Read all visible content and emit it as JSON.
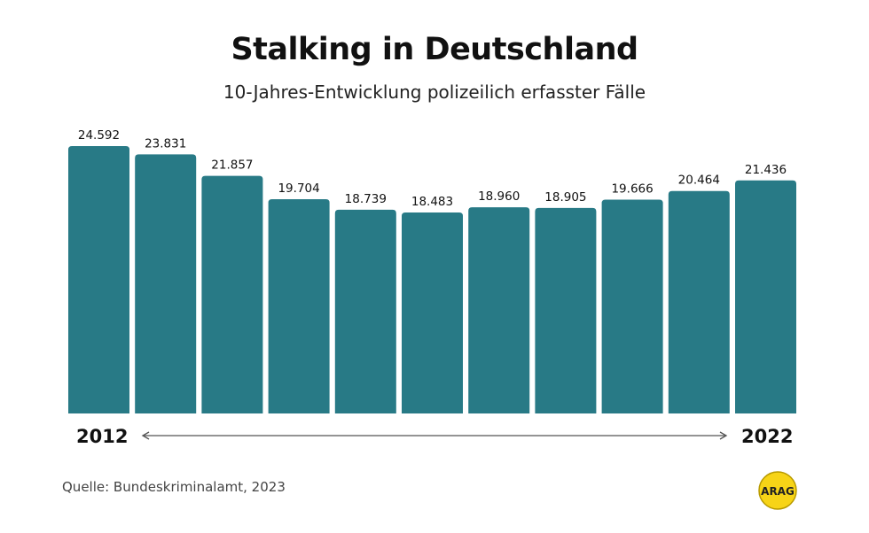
{
  "chart_data": {
    "type": "bar",
    "title": "Stalking in Deutschland",
    "subtitle": "10-Jahres-Entwicklung polizeilich erfasster Fälle",
    "x_labels": [
      "2012",
      "2022"
    ],
    "values": [
      24592,
      23831,
      21857,
      19704,
      18739,
      18483,
      18960,
      18905,
      19666,
      20464,
      21436
    ],
    "data_labels": [
      "24.592",
      "23.831",
      "21.857",
      "19.704",
      "18.739",
      "18.483",
      "18.960",
      "18.905",
      "19.666",
      "20.464",
      "21.436"
    ],
    "ylim": [
      0,
      24592
    ],
    "grid": false,
    "bar_color": "#287a86"
  },
  "source": "Quelle:  Bundeskriminalamt, 2023",
  "logo": {
    "text": "ARAG",
    "color": "#f7d417"
  }
}
